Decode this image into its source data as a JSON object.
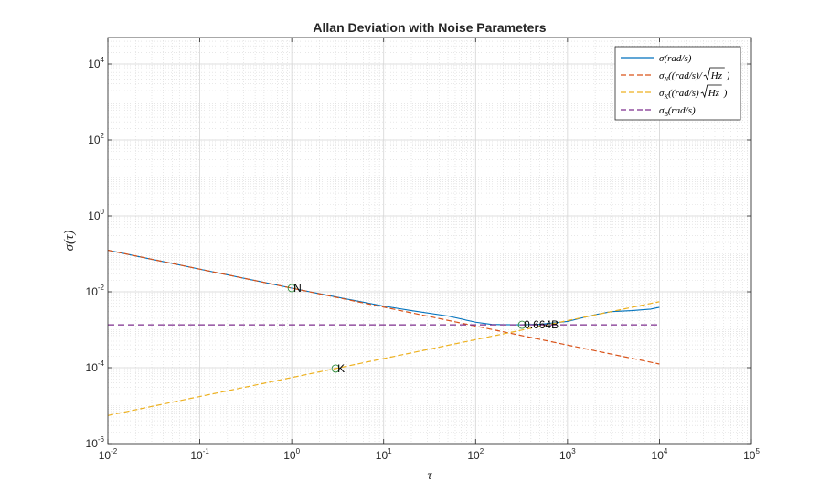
{
  "chart_data": {
    "type": "line",
    "title": "Allan Deviation with Noise Parameters",
    "xlabel": "τ",
    "ylabel": "σ(τ)",
    "xscale": "log",
    "yscale": "log",
    "xlim": [
      0.01,
      100000
    ],
    "ylim": [
      1e-06,
      50000
    ],
    "x_ticks": [
      {
        "value": 0.01,
        "base": "10",
        "exp": "-2"
      },
      {
        "value": 0.1,
        "base": "10",
        "exp": "-1"
      },
      {
        "value": 1,
        "base": "10",
        "exp": "0"
      },
      {
        "value": 10,
        "base": "10",
        "exp": "1"
      },
      {
        "value": 100,
        "base": "10",
        "exp": "2"
      },
      {
        "value": 1000,
        "base": "10",
        "exp": "3"
      },
      {
        "value": 10000,
        "base": "10",
        "exp": "4"
      },
      {
        "value": 100000,
        "base": "10",
        "exp": "5"
      }
    ],
    "y_ticks": [
      {
        "value": 1e-06,
        "base": "10",
        "exp": "-6"
      },
      {
        "value": 0.0001,
        "base": "10",
        "exp": "-4"
      },
      {
        "value": 0.01,
        "base": "10",
        "exp": "-2"
      },
      {
        "value": 1,
        "base": "10",
        "exp": "0"
      },
      {
        "value": 100,
        "base": "10",
        "exp": "2"
      },
      {
        "value": 10000,
        "base": "10",
        "exp": "4"
      }
    ],
    "grid": true,
    "minor_grid": true,
    "legend_position": "top-right",
    "series": [
      {
        "name": "σ(rad/s)",
        "color": "#0072bd",
        "style": "solid",
        "x": [
          0.01,
          0.02,
          0.05,
          0.1,
          0.2,
          0.5,
          1,
          2,
          5,
          10,
          20,
          50,
          100,
          150,
          200,
          300,
          500,
          1000,
          2000,
          3000,
          5000,
          8000,
          10000
        ],
        "y": [
          0.125,
          0.088,
          0.056,
          0.0395,
          0.028,
          0.0177,
          0.0125,
          0.0089,
          0.0058,
          0.0042,
          0.0032,
          0.0023,
          0.00158,
          0.00138,
          0.00136,
          0.00135,
          0.00139,
          0.00165,
          0.0025,
          0.003,
          0.0032,
          0.0035,
          0.0039
        ]
      },
      {
        "name": "σN((rad/s)/√Hz)",
        "color": "#d95319",
        "style": "dashed",
        "x": [
          0.01,
          10000
        ],
        "y": [
          0.125,
          0.000125
        ]
      },
      {
        "name": "σK((rad/s)√Hz)",
        "color": "#edb120",
        "style": "dashed",
        "x": [
          0.01,
          10000
        ],
        "y": [
          5.5e-06,
          0.0055
        ]
      },
      {
        "name": "σB(rad/s)",
        "color": "#7e2f8e",
        "style": "dashed",
        "x": [
          0.01,
          10000
        ],
        "y": [
          0.00135,
          0.00135
        ]
      }
    ],
    "legend": [
      {
        "sym": "σ",
        "sub": "",
        "unit": "(rad/s)",
        "sqrt_mode": "none",
        "color": "#0072bd",
        "style": "solid"
      },
      {
        "sym": "σ",
        "sub": "N",
        "unit": "((rad/s)/",
        "sqrt_mode": "close",
        "color": "#d95319",
        "style": "dashed"
      },
      {
        "sym": "σ",
        "sub": "K",
        "unit": "((rad/s)",
        "sqrt_mode": "close",
        "color": "#edb120",
        "style": "dashed"
      },
      {
        "sym": "σ",
        "sub": "B",
        "unit": "(rad/s)",
        "sqrt_mode": "none",
        "color": "#7e2f8e",
        "style": "dashed"
      }
    ],
    "sqrt_text": "Hz",
    "annotations": [
      {
        "label": "N",
        "x": 1,
        "y": 0.0125
      },
      {
        "label": "K",
        "x": 3,
        "y": 9.5e-05
      },
      {
        "label": "0.664B",
        "x": 320,
        "y": 0.00135
      }
    ]
  }
}
